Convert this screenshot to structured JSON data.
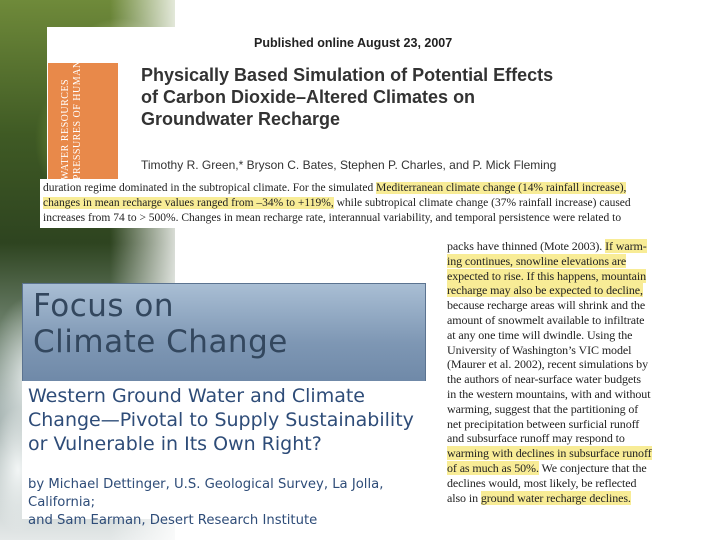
{
  "article": {
    "published": "Published online August 23, 2007",
    "title_lines": [
      "Physically Based Simulation of Potential Effects",
      "of Carbon Dioxide–Altered Climates on",
      "Groundwater Recharge"
    ],
    "authors": "Timothy R. Green,* Bryson C. Bates, Stephen P. Charles, and P. Mick Fleming",
    "strip_lines": [
      "WATER RESOURCES",
      "PRESSURES OF HUMANITY"
    ]
  },
  "abstract": {
    "l1_a": "duration regime dominated in the subtropical climate. For the simulated ",
    "l1_hl": "Mediterranean climate change (14% rainfall increase),",
    "l2_hl": "changes in mean recharge values ranged from –34% to +119%,",
    "l2_b": " while subtropical climate change (37% rainfall increase) caused",
    "l3": "increases from 74 to > 500%. Changes in mean recharge rate, interannual variability, and temporal persistence were related to"
  },
  "right_column": {
    "lines": [
      "packs have thinned (Mote 2003). If warm-",
      "ing continues, snowline elevations are",
      "expected to rise. If this happens, mountain",
      "recharge may also be expected to decline,",
      "because recharge areas will shrink and the",
      "amount of snowmelt available to infiltrate",
      "at any one time will dwindle. Using the",
      "University of Washington’s VIC model",
      "(Maurer et al. 2002), recent simulations by",
      "the authors of near-surface water budgets",
      "in the western mountains, with and without",
      "warming, suggest that the partitioning of",
      "net precipitation between surficial runoff",
      "and subsurface runoff may respond to",
      "warming with declines in subsurface runoff",
      "of as much as 50%. We conjecture that the",
      "declines would, most likely, be reflected",
      "also in ground water recharge declines."
    ],
    "l1_pre": "packs have thinned (Mote 2003). ",
    "l1_hl": "If warm-",
    "l15_hl": "warming with declines in subsurface runoff",
    "l16_hl": "of as much as 50%.",
    "l16_post": " We conjecture that the",
    "l18_pre": "also in ",
    "l18_hl": "ground water recharge declines."
  },
  "focus": {
    "title_line1": "Focus on",
    "title_line2": "Climate Change",
    "feature_title_lines": [
      "Western Ground Water and Climate",
      "Change—Pivotal to Supply Sustainability",
      "or Vulnerable in Its Own Right?"
    ],
    "byline_lines": [
      "by Michael Dettinger, U.S. Geological Survey, La Jolla, California;",
      "and Sam Earman, Desert Research Institute"
    ]
  },
  "colors": {
    "highlight": "#f8ec96",
    "strip": "#e8894a",
    "focus_panel": "#7e97b4",
    "feature_text": "#2e4c78"
  }
}
